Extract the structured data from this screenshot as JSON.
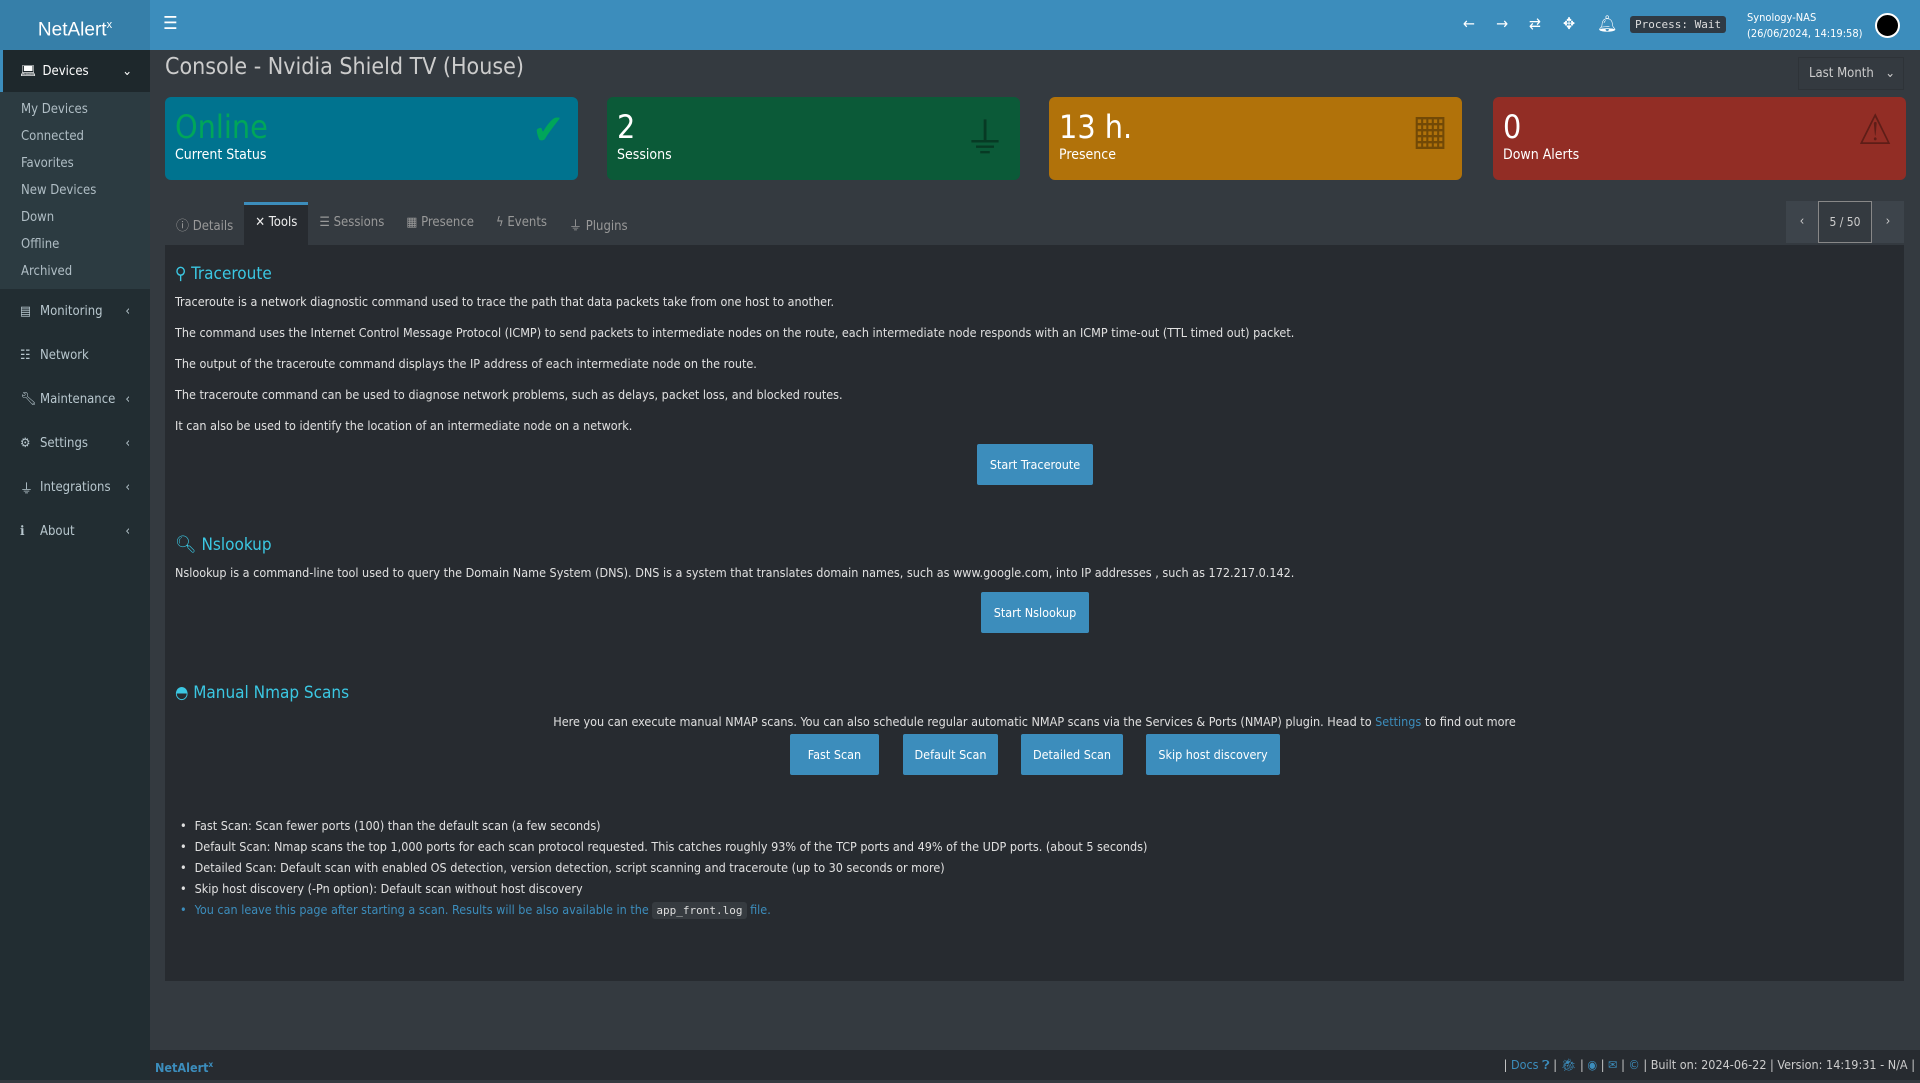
{
  "app": {
    "logo": "NetAlert",
    "logo_sup": "x"
  },
  "topbar": {
    "process": "Process: Wait",
    "host": "Synology-NAS",
    "datetime": "(26/06/2024, 14:19:58)"
  },
  "sidebar": {
    "active": "Devices",
    "sub": [
      "My Devices",
      "Connected",
      "Favorites",
      "New Devices",
      "Down",
      "Offline",
      "Archived"
    ],
    "items": [
      {
        "label": "Monitoring",
        "chevron": true
      },
      {
        "label": "Network",
        "chevron": false
      },
      {
        "label": "Maintenance",
        "chevron": true
      },
      {
        "label": "Settings",
        "chevron": true
      },
      {
        "label": "Integrations",
        "chevron": true
      },
      {
        "label": "About",
        "chevron": true
      }
    ]
  },
  "page": {
    "title": "Console - Nvidia Shield TV (House)",
    "range": "Last Month"
  },
  "cards": [
    {
      "value": "Online",
      "label": "Current Status",
      "color": "#00738f"
    },
    {
      "value": "2",
      "label": "Sessions",
      "color": "#0b5a38"
    },
    {
      "value": "13 h.",
      "label": "Presence",
      "color": "#b1720a"
    },
    {
      "value": "0",
      "label": "Down Alerts",
      "color": "#922d25"
    }
  ],
  "tabs": [
    "Details",
    "Tools",
    "Sessions",
    "Presence",
    "Events",
    "Plugins"
  ],
  "pager": {
    "page": "5 / 50"
  },
  "traceroute": {
    "title": "Traceroute",
    "lines": [
      "Traceroute is a network diagnostic command used to trace the path that data packets take from one host to another.",
      "The command uses the Internet Control Message Protocol (ICMP) to send packets to intermediate nodes on the route, each intermediate node responds with an ICMP time-out (TTL timed out) packet.",
      "The output of the traceroute command displays the IP address of each intermediate node on the route.",
      "The traceroute command can be used to diagnose network problems, such as delays, packet loss, and blocked routes.",
      "It can also be used to identify the location of an intermediate node on a network."
    ],
    "button": "Start Traceroute"
  },
  "nslookup": {
    "title": "Nslookup",
    "text": "Nslookup is a command-line tool used to query the Domain Name System (DNS). DNS is a system that translates domain names, such as www.google.com, into IP addresses , such as 172.217.0.142.",
    "button": "Start Nslookup"
  },
  "nmap": {
    "title": "Manual Nmap Scans",
    "intro": "Here you can execute manual NMAP scans. You can also schedule regular automatic NMAP scans via the Services & Ports (NMAP) plugin. Head to",
    "link": "Settings",
    "intro_end": "to find out more",
    "buttons": [
      "Fast Scan",
      "Default Scan",
      "Detailed Scan",
      "Skip host discovery"
    ],
    "notes": [
      "Fast Scan: Scan fewer ports (100) than the default scan (a few seconds)",
      "Default Scan: Nmap scans the top 1,000 ports for each scan protocol requested. This catches roughly 93% of the TCP ports and 49% of the UDP ports. (about 5 seconds)",
      "Detailed Scan: Default scan with enabled OS detection, version detection, script scanning and traceroute (up to 30 seconds or more)",
      "Skip host discovery (-Pn option): Default scan without host discovery"
    ],
    "tip": "You can leave this page after starting a scan. Results will be also available in the",
    "tip_code": "app_front.log",
    "tip_end": "file."
  },
  "footer": {
    "brand": "NetAlert",
    "brand_sup": "x",
    "docs": "Docs",
    "built": "| Built on: 2024-06-22 | Version: 14:19:31 - N/A |"
  }
}
